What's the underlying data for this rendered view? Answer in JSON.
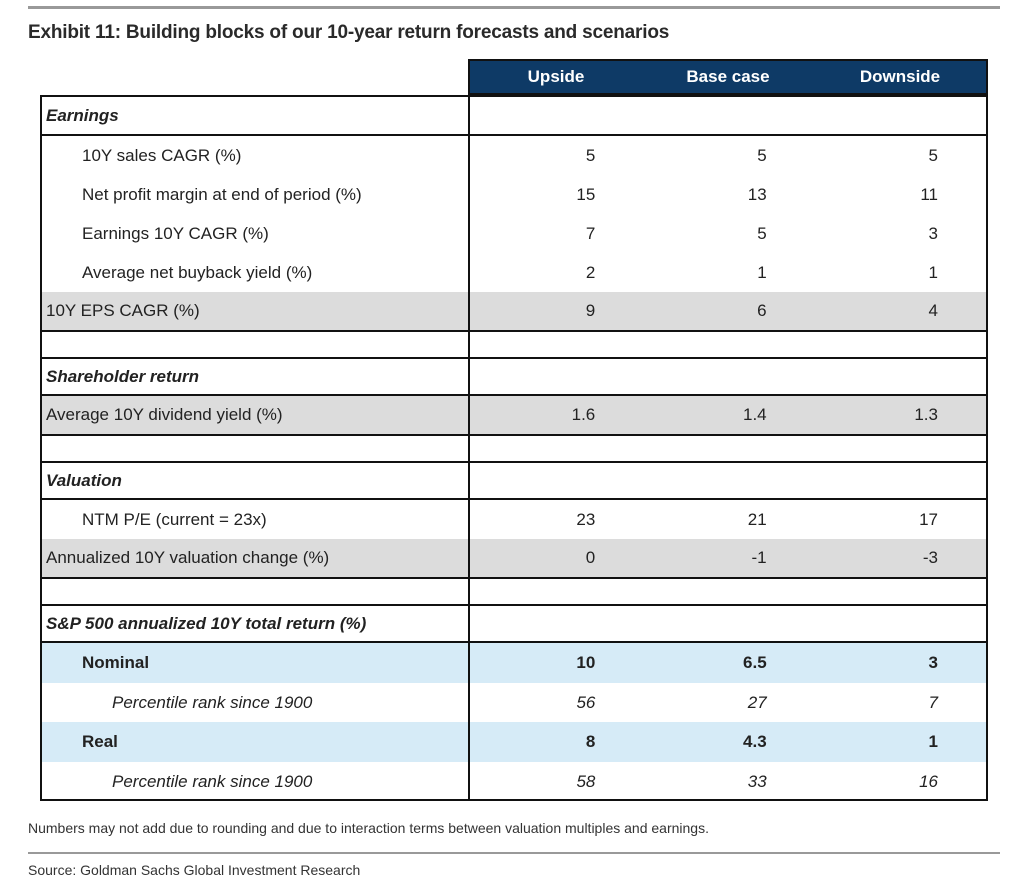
{
  "title": "Exhibit 11: Building blocks of our 10-year return forecasts and scenarios",
  "columns": [
    "Upside",
    "Base case",
    "Downside"
  ],
  "rows": [
    {
      "label": "Earnings",
      "type": "section",
      "values": []
    },
    {
      "label": "10Y sales CAGR (%)",
      "type": "ind1",
      "values": [
        "5",
        "5",
        "5"
      ]
    },
    {
      "label": "Net profit margin at end of period (%)",
      "type": "ind1",
      "values": [
        "15",
        "13",
        "11"
      ]
    },
    {
      "label": "Earnings 10Y CAGR (%)",
      "type": "ind1",
      "values": [
        "7",
        "5",
        "3"
      ]
    },
    {
      "label": "Average net buyback yield (%)",
      "type": "ind1",
      "values": [
        "2",
        "1",
        "1"
      ]
    },
    {
      "label": "10Y EPS CAGR (%)",
      "type": "grey",
      "values": [
        "9",
        "6",
        "4"
      ]
    },
    {
      "label": "",
      "type": "spacer",
      "values": []
    },
    {
      "label": "Shareholder return",
      "type": "section",
      "values": []
    },
    {
      "label": "Average 10Y dividend yield (%)",
      "type": "grey",
      "values": [
        "1.6",
        "1.4",
        "1.3"
      ]
    },
    {
      "label": "",
      "type": "spacer",
      "values": []
    },
    {
      "label": "Valuation",
      "type": "section",
      "values": []
    },
    {
      "label": "NTM P/E (current = 23x)",
      "type": "ind1",
      "values": [
        "23",
        "21",
        "17"
      ]
    },
    {
      "label": "Annualized 10Y valuation change (%)",
      "type": "grey",
      "values": [
        "0",
        "-1",
        "-3"
      ]
    },
    {
      "label": "",
      "type": "spacer",
      "values": []
    },
    {
      "label": "S&P 500 annualized 10Y total return (%)",
      "type": "section",
      "values": []
    },
    {
      "label": "Nominal",
      "type": "blue",
      "values": [
        "10",
        "6.5",
        "3"
      ]
    },
    {
      "label": "Percentile rank since 1900",
      "type": "ind2",
      "values": [
        "56",
        "27",
        "7"
      ]
    },
    {
      "label": "Real",
      "type": "blue",
      "values": [
        "8",
        "4.3",
        "1"
      ]
    },
    {
      "label": "Percentile rank since 1900",
      "type": "ind2",
      "values": [
        "58",
        "33",
        "16"
      ]
    }
  ],
  "footnote": "Numbers may not add due to rounding and due to interaction terms between valuation multiples and earnings.",
  "source": "Source: Goldman Sachs Global Investment Research",
  "colors": {
    "header": "#0e3a66",
    "grey_row": "#dcdcdc",
    "blue_row": "#d6ebf7"
  }
}
